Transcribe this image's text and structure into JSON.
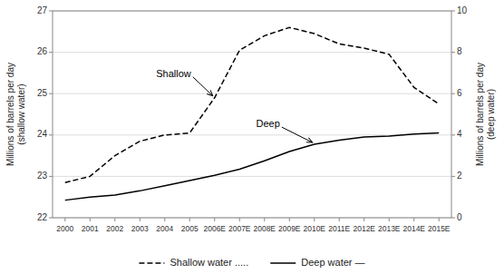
{
  "chart_data": {
    "type": "line",
    "categories": [
      "2000",
      "2001",
      "2002",
      "2003",
      "2004",
      "2005",
      "2006E",
      "2007E",
      "2008E",
      "2009E",
      "2010E",
      "2011E",
      "2012E",
      "2013E",
      "2014E",
      "2015E"
    ],
    "series": [
      {
        "name": "Shallow water .....",
        "color": "black",
        "line_style": "dashed",
        "values": [
          22.85,
          23.0,
          23.5,
          23.85,
          24.0,
          24.05,
          24.9,
          26.05,
          26.4,
          26.6,
          26.45,
          26.2,
          26.1,
          25.95,
          25.15,
          24.75
        ]
      },
      {
        "name": "Deep water —",
        "color": "black",
        "line_style": "solid",
        "axis": "y2",
        "values": [
          0.85,
          1.0,
          1.1,
          1.3,
          1.55,
          1.8,
          2.05,
          2.35,
          2.75,
          3.2,
          3.55,
          3.75,
          3.9,
          3.95,
          4.05,
          4.1
        ]
      }
    ],
    "ylabel": "Millions of barrels per day\n(shallow water)",
    "y2label": "Millions of barrels per day\n(deep water)",
    "ylim": [
      22,
      27
    ],
    "yticks": [
      22,
      23,
      24,
      25,
      26,
      27
    ],
    "y2lim": [
      0,
      10
    ],
    "y2ticks": [
      0,
      2,
      4,
      6,
      8,
      10
    ],
    "grid": true,
    "legend": "bottom",
    "annotations": [
      {
        "text": "Shallow"
      },
      {
        "text": "Deep"
      }
    ]
  }
}
